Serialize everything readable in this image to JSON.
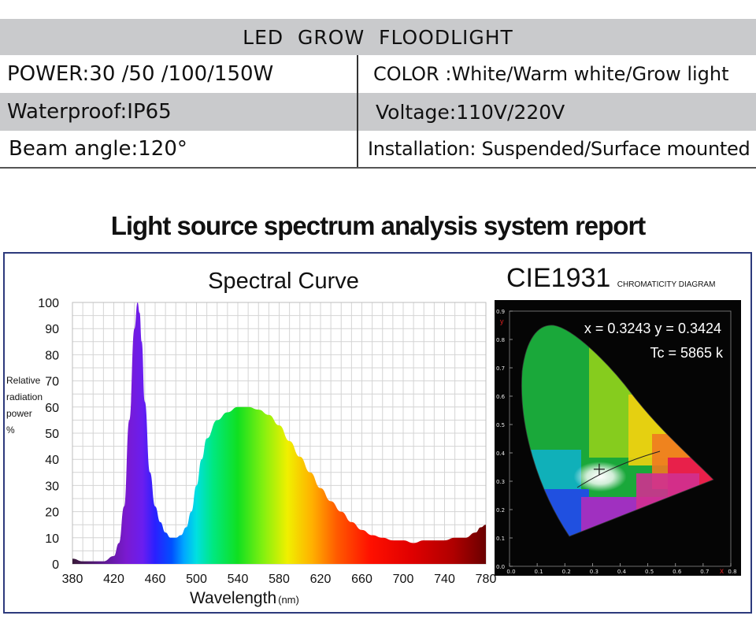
{
  "header": {
    "title": "LED  GROW  FLOODLIGHT"
  },
  "specs": {
    "power": "POWER:30 /50 /100/150W",
    "color": "COLOR :White/Warm white/Grow light",
    "waterproof": "Waterproof:IP65",
    "voltage": "Voltage:110V/220V",
    "beam_angle": "Beam angle:120°",
    "installation": "Installation: Suspended/Surface mounted"
  },
  "report_title": "Light source spectrum analysis system report",
  "cie": {
    "title": "CIE1931",
    "subtitle": "CHROMATICITY DIAGRAM",
    "xy_readout": "x = 0.3243 y = 0.3424",
    "tc_readout": "Tc = 5865 k",
    "x_axis_letter": "x",
    "y_axis_letter": "y",
    "x_ticks": [
      "0.0",
      "0.1",
      "0.2",
      "0.3",
      "0.4",
      "0.5",
      "0.6",
      "0.7",
      "0.8"
    ],
    "y_ticks": [
      "0.0",
      "0.1",
      "0.2",
      "0.3",
      "0.4",
      "0.5",
      "0.6",
      "0.7",
      "0.8",
      "0.9"
    ]
  },
  "chart_data": [
    {
      "type": "area",
      "title": "Spectral Curve",
      "xlabel": "Wavelength",
      "xlabel_unit": "(nm)",
      "ylabel_lines": [
        "Relative",
        "radiation",
        "power",
        "%"
      ],
      "xlim": [
        380,
        780
      ],
      "ylim": [
        0,
        100
      ],
      "x_ticks": [
        380,
        420,
        460,
        500,
        540,
        580,
        620,
        660,
        700,
        740,
        780
      ],
      "y_ticks": [
        0,
        10,
        20,
        30,
        40,
        50,
        60,
        70,
        80,
        90,
        100
      ],
      "grid": true,
      "fill": "visible-spectrum gradient",
      "x": [
        380,
        390,
        400,
        410,
        420,
        425,
        430,
        435,
        440,
        443,
        445,
        447,
        450,
        455,
        460,
        465,
        470,
        475,
        480,
        485,
        490,
        495,
        500,
        505,
        510,
        520,
        530,
        540,
        550,
        560,
        570,
        580,
        590,
        600,
        610,
        620,
        630,
        640,
        650,
        660,
        670,
        680,
        690,
        700,
        710,
        720,
        730,
        740,
        750,
        760,
        770,
        775,
        780
      ],
      "values": [
        2,
        1,
        1,
        1,
        3,
        8,
        22,
        55,
        90,
        100,
        96,
        85,
        62,
        35,
        22,
        16,
        12,
        10,
        10,
        11,
        14,
        20,
        30,
        40,
        48,
        55,
        58,
        60,
        60,
        59,
        57,
        53,
        47,
        41,
        35,
        29,
        24,
        20,
        16,
        13,
        11,
        10,
        9,
        9,
        8,
        9,
        9,
        9,
        10,
        10,
        12,
        14,
        15
      ]
    },
    {
      "type": "scatter",
      "title": "CIE1931",
      "xlim": [
        0,
        0.8
      ],
      "ylim": [
        0,
        0.9
      ],
      "points": [
        {
          "x": 0.3243,
          "y": 0.3424
        }
      ]
    }
  ],
  "colors": {
    "table_gray": "#c9cacc",
    "frame_border": "#2d3a7c",
    "grid": "#c8c8c8",
    "cie_background": "#050505",
    "cie_axis_text": "#e8e8e8",
    "cie_axis_letter": "#e02020"
  }
}
